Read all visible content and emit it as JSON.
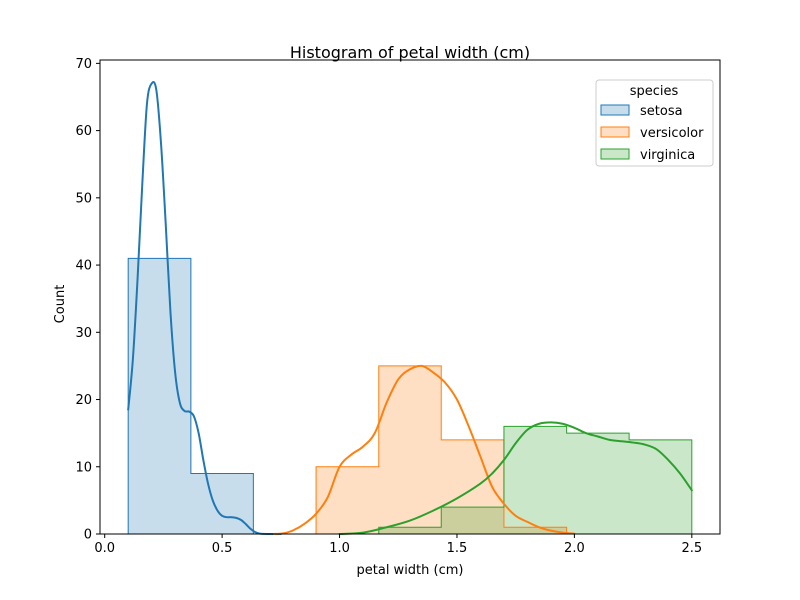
{
  "chart_data": {
    "type": "histogram",
    "title": "Histogram of petal width (cm)",
    "xlabel": "petal width (cm)",
    "ylabel": "Count",
    "xlim": [
      -0.02,
      2.62
    ],
    "ylim": [
      0,
      70.5
    ],
    "xticks": [
      0.0,
      0.5,
      1.0,
      1.5,
      2.0,
      2.5
    ],
    "xtick_labels": [
      "0.0",
      "0.5",
      "1.0",
      "1.5",
      "2.0",
      "2.5"
    ],
    "yticks": [
      0,
      10,
      20,
      30,
      40,
      50,
      60,
      70
    ],
    "ytick_labels": [
      "0",
      "10",
      "20",
      "30",
      "40",
      "50",
      "60",
      "70"
    ],
    "grid": false,
    "legend": {
      "title": "species",
      "placement": "top-right"
    },
    "bin_edges": [
      0.1,
      0.367,
      0.633,
      0.9,
      1.167,
      1.433,
      1.7,
      1.967,
      2.233,
      2.5
    ],
    "series": [
      {
        "name": "setosa",
        "color": "#1f77b4",
        "counts": [
          41,
          9,
          0,
          0,
          0,
          0,
          0,
          0,
          0
        ],
        "kde": [
          [
            0.1,
            18.5
          ],
          [
            0.12,
            26
          ],
          [
            0.14,
            38
          ],
          [
            0.16,
            52
          ],
          [
            0.18,
            64
          ],
          [
            0.2,
            67
          ],
          [
            0.22,
            66
          ],
          [
            0.24,
            58
          ],
          [
            0.26,
            46
          ],
          [
            0.28,
            33
          ],
          [
            0.3,
            24
          ],
          [
            0.32,
            19.5
          ],
          [
            0.34,
            18.3
          ],
          [
            0.36,
            18.2
          ],
          [
            0.38,
            17.5
          ],
          [
            0.4,
            15
          ],
          [
            0.42,
            11
          ],
          [
            0.44,
            7.5
          ],
          [
            0.46,
            5
          ],
          [
            0.48,
            3.5
          ],
          [
            0.5,
            2.7
          ],
          [
            0.52,
            2.5
          ],
          [
            0.54,
            2.5
          ],
          [
            0.56,
            2.4
          ],
          [
            0.58,
            2.1
          ],
          [
            0.6,
            1.5
          ],
          [
            0.62,
            0.8
          ],
          [
            0.64,
            0.3
          ],
          [
            0.66,
            0.05
          ],
          [
            0.7,
            0
          ],
          [
            0.75,
            0
          ]
        ]
      },
      {
        "name": "versicolor",
        "color": "#ff7f0e",
        "counts": [
          0,
          0,
          0,
          10,
          25,
          14,
          1,
          0,
          0
        ],
        "kde": [
          [
            0.72,
            0
          ],
          [
            0.76,
            0.1
          ],
          [
            0.8,
            0.5
          ],
          [
            0.85,
            1.5
          ],
          [
            0.9,
            3
          ],
          [
            0.95,
            5.5
          ],
          [
            1.0,
            10
          ],
          [
            1.05,
            11.8
          ],
          [
            1.1,
            13
          ],
          [
            1.15,
            15
          ],
          [
            1.2,
            19.5
          ],
          [
            1.25,
            23
          ],
          [
            1.3,
            24.5
          ],
          [
            1.35,
            25
          ],
          [
            1.4,
            24
          ],
          [
            1.45,
            22.5
          ],
          [
            1.5,
            20
          ],
          [
            1.55,
            16
          ],
          [
            1.6,
            11.5
          ],
          [
            1.65,
            7
          ],
          [
            1.7,
            4.5
          ],
          [
            1.75,
            2.7
          ],
          [
            1.8,
            1.8
          ],
          [
            1.85,
            1
          ],
          [
            1.9,
            0.5
          ],
          [
            1.95,
            0.2
          ],
          [
            2.0,
            0.05
          ]
        ]
      },
      {
        "name": "virginica",
        "color": "#2ca02c",
        "counts": [
          0,
          0,
          0,
          0,
          1,
          4,
          16,
          15,
          14
        ],
        "kde": [
          [
            1.0,
            0
          ],
          [
            1.1,
            0.2
          ],
          [
            1.2,
            1
          ],
          [
            1.3,
            2
          ],
          [
            1.4,
            3.5
          ],
          [
            1.5,
            5.3
          ],
          [
            1.6,
            7.5
          ],
          [
            1.65,
            9
          ],
          [
            1.7,
            11
          ],
          [
            1.75,
            13.5
          ],
          [
            1.8,
            15.5
          ],
          [
            1.85,
            16.4
          ],
          [
            1.9,
            16.6
          ],
          [
            1.95,
            16.4
          ],
          [
            2.0,
            15.8
          ],
          [
            2.05,
            15
          ],
          [
            2.1,
            14.5
          ],
          [
            2.15,
            14
          ],
          [
            2.2,
            13.8
          ],
          [
            2.25,
            13.6
          ],
          [
            2.3,
            13.3
          ],
          [
            2.35,
            12.6
          ],
          [
            2.4,
            11
          ],
          [
            2.45,
            9
          ],
          [
            2.5,
            6.5
          ]
        ]
      }
    ]
  }
}
